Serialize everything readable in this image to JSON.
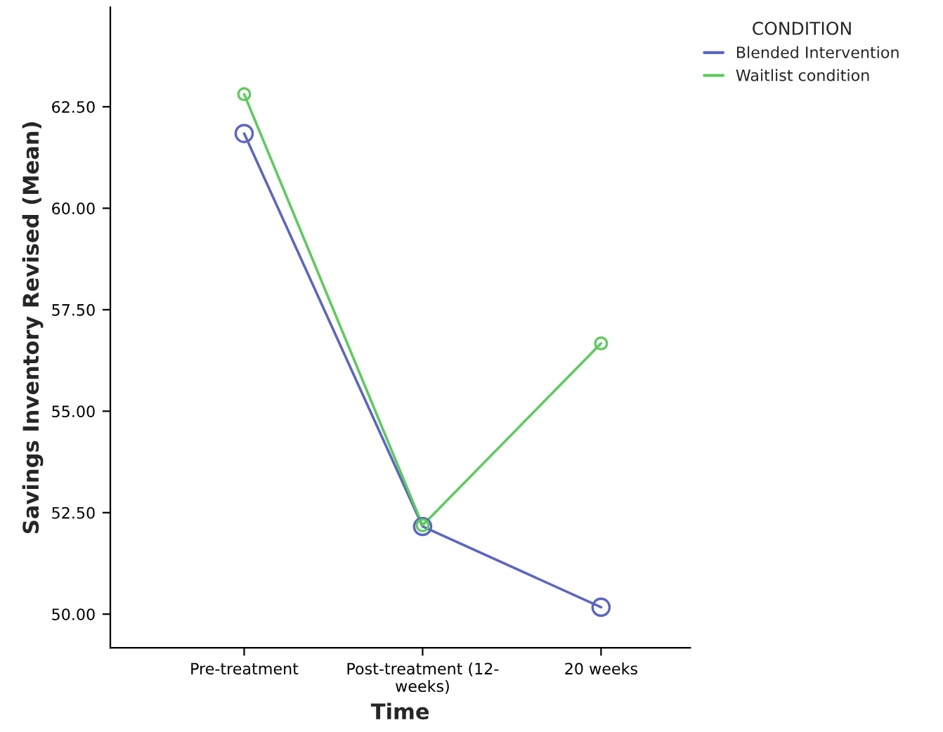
{
  "chart_data": {
    "type": "line",
    "xlabel": "Time",
    "ylabel": "Savings Inventory Revised (Mean)",
    "legend_title": "CONDITION",
    "categories": [
      "Pre-treatment",
      "Post-treatment (12-weeks)",
      "20 weeks"
    ],
    "series": [
      {
        "name": "Blended Intervention",
        "color": "#5b66c4",
        "values": [
          61.84,
          52.16,
          50.17
        ]
      },
      {
        "name": "Waitlist condition",
        "color": "#5ccc5c",
        "values": [
          62.81,
          52.19,
          56.67
        ]
      }
    ],
    "ylim": [
      49.17,
      64.95
    ],
    "yticks": [
      {
        "value": 50,
        "label": "50.00"
      },
      {
        "value": 52.5,
        "label": "52.50"
      },
      {
        "value": 55,
        "label": "55.00"
      },
      {
        "value": 57.5,
        "label": "57.50"
      },
      {
        "value": 60,
        "label": "60.00"
      },
      {
        "value": 62.5,
        "label": "62.50"
      }
    ],
    "marker": "circle",
    "line_style": "solid",
    "grid": false,
    "legend": "top right"
  }
}
